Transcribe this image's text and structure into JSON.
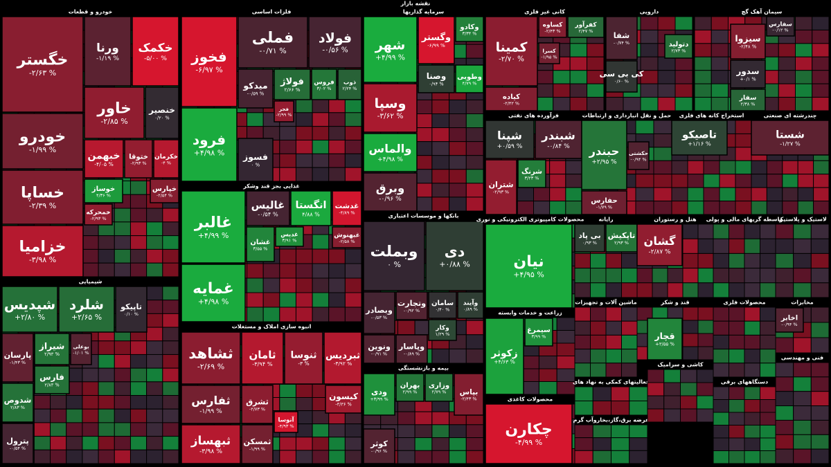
{
  "chart_data": {
    "type": "treemap",
    "title": "نقشه بازار",
    "sectors": [
      {
        "name": "خودرو و قطعات",
        "tiles": [
          {
            "name": "خگستر",
            "value": -2.63,
            "value_label": "-۲/۶۳ %"
          },
          {
            "name": "خودرو",
            "value": -1.99,
            "value_label": "-۱/۹۹ %"
          },
          {
            "name": "خساپا",
            "value": -2.39,
            "value_label": "-۲/۳۹ %"
          },
          {
            "name": "خزامیا",
            "value": -3.98,
            "value_label": "-۳/۹۸ %"
          },
          {
            "name": "ورنا",
            "value": -1.19,
            "value_label": "-۱/۱۹ %"
          },
          {
            "name": "خکمک",
            "value": -5,
            "value_label": "-۵/۰۰ %"
          },
          {
            "name": "خاور",
            "value": -2.85,
            "value_label": "-۲/۸۵ %"
          },
          {
            "name": "خنصیر",
            "value": 0.2,
            "value_label": "۰/۲۰ %"
          },
          {
            "name": "خبهمن",
            "value": -4.05,
            "value_label": "-۴/۰۵ %"
          },
          {
            "name": "ختوقا",
            "value": -2.93,
            "value_label": "-۲/۹۳ %"
          },
          {
            "name": "خکرمان",
            "value": -4,
            "value_label": "-۴ %"
          },
          {
            "name": "خوساز",
            "value": 4.36,
            "value_label": "۴/۳۶ %"
          },
          {
            "name": "خپارس",
            "value": -2.54,
            "value_label": "-۲/۵۴ %"
          },
          {
            "name": "خمحرکه",
            "value": -2.93,
            "value_label": "-۲/۹۳ %"
          }
        ]
      },
      {
        "name": "شیمیایی",
        "tiles": [
          {
            "name": "شپدیس",
            "value": 2.8,
            "value_label": "+۲/۸۰ %"
          },
          {
            "name": "شلرد",
            "value": 2.65,
            "value_label": "+۲/۶۵ %"
          },
          {
            "name": "تاپیکو",
            "value": 0.1,
            "value_label": "۰/۱۰ %"
          },
          {
            "name": "پارسان",
            "value": -1.43,
            "value_label": "-۱/۴۳ %"
          },
          {
            "name": "شیراز",
            "value": 2.93,
            "value_label": "۲/۹۳ %"
          },
          {
            "name": "بوعلی",
            "value": -1.01,
            "value_label": "-۱/۰۱ %"
          },
          {
            "name": "شدوص",
            "value": 2.83,
            "value_label": "۲/۸۳ %"
          },
          {
            "name": "فارس",
            "value": 2.83,
            "value_label": "۲/۸۳ %"
          },
          {
            "name": "پترول",
            "value": -0.54,
            "value_label": "-۰/۵۴ %"
          }
        ]
      },
      {
        "name": "فلزات اساسی",
        "tiles": [
          {
            "name": "فخوز",
            "value": -6.97,
            "value_label": "-۶/۹۷ %"
          },
          {
            "name": "فملی",
            "value": -0.71,
            "value_label": "-۰/۷۱ %"
          },
          {
            "name": "فولاد",
            "value": -0.56,
            "value_label": "-۰/۵۶ %"
          },
          {
            "name": "فرود",
            "value": 4.98,
            "value_label": "+۴/۹۸ %"
          },
          {
            "name": "میدکو",
            "value": -0.59,
            "value_label": "-۰/۵۹ %"
          },
          {
            "name": "فولاژ",
            "value": 2.66,
            "value_label": "۲/۶۶ %"
          },
          {
            "name": "فروس",
            "value": 3.02,
            "value_label": "۳/۰۲ %"
          },
          {
            "name": "ذوب",
            "value": 2.24,
            "value_label": "۲/۲۴ %"
          },
          {
            "name": "فجر",
            "value": -2.99,
            "value_label": "-۲/۹۹ %"
          },
          {
            "name": "فسوز",
            "value": 0,
            "value_label": "۰ %"
          }
        ]
      },
      {
        "name": "غذایی بجز قند وشکر",
        "tiles": [
          {
            "name": "غالبر",
            "value": 4.99,
            "value_label": "+۴/۹۹ %"
          },
          {
            "name": "غمایه",
            "value": 4.98,
            "value_label": "+۴/۹۸ %"
          },
          {
            "name": "غالیس",
            "value": -0.54,
            "value_label": "-۰/۵۴ %"
          },
          {
            "name": "انگستا",
            "value": 4.88,
            "value_label": "۴/۸۸ %"
          },
          {
            "name": "غدشت",
            "value": -4.89,
            "value_label": "-۴/۸۹ %"
          },
          {
            "name": "غشان",
            "value": 3.55,
            "value_label": "۳/۵۵ %"
          },
          {
            "name": "غدیس",
            "value": 3.91,
            "value_label": "۳/۹۱ %"
          },
          {
            "name": "غبهنوش",
            "value": -2.58,
            "value_label": "-۲/۵۸ %"
          }
        ]
      },
      {
        "name": "انبوه سازی املاک و مستغلات",
        "tiles": [
          {
            "name": "ثشاهد",
            "value": -2.69,
            "value_label": "-۲/۶۹ %"
          },
          {
            "name": "ثامان",
            "value": -3.94,
            "value_label": "-۳/۹۴ %"
          },
          {
            "name": "ثنوسا",
            "value": -3,
            "value_label": "-۳ %"
          },
          {
            "name": "ثبردیس",
            "value": -3.92,
            "value_label": "-۳/۹۲ %"
          },
          {
            "name": "ثفارس",
            "value": -1.99,
            "value_label": "-۱/۹۹ %"
          },
          {
            "name": "ثبهساز",
            "value": -3.98,
            "value_label": "-۳/۹۸ %"
          },
          {
            "name": "ثشرق",
            "value": -2.73,
            "value_label": "-۲/۷۳ %"
          },
          {
            "name": "ثمسکن",
            "value": -1.99,
            "value_label": "-۱/۹۹ %"
          },
          {
            "name": "کیسون",
            "value": -3.36,
            "value_label": "-۳/۳۶ %"
          },
          {
            "name": "آتوسا",
            "value": -4.93,
            "value_label": "-۴/۹۳ %"
          }
        ]
      },
      {
        "name": "سرمایه گذاریها",
        "tiles": [
          {
            "name": "شهر",
            "value": 4.99,
            "value_label": "+۴/۹۹ %"
          },
          {
            "name": "وسپا",
            "value": -3.62,
            "value_label": "-۳/۶۲ %"
          },
          {
            "name": "والماس",
            "value": 4.98,
            "value_label": "+۴/۹۸ %"
          },
          {
            "name": "وبرق",
            "value": -0.96,
            "value_label": "-۰/۹۶ %"
          },
          {
            "name": "وگستر",
            "value": -6.99,
            "value_label": "-۶/۹۹ %"
          },
          {
            "name": "وکادو",
            "value": 3.34,
            "value_label": "۳/۳۴ %"
          },
          {
            "name": "وطوبی",
            "value": 4.79,
            "value_label": "۴/۷۹ %"
          },
          {
            "name": "وصنا",
            "value": 0.94,
            "value_label": "۰/۹۴ %"
          }
        ]
      },
      {
        "name": "بانکها و موسسات اعتباری",
        "tiles": [
          {
            "name": "وبملت",
            "value": 0,
            "value_label": "۰ %"
          },
          {
            "name": "دی",
            "value": 0.88,
            "value_label": "+۰/۸۸ %"
          },
          {
            "name": "وبصادر",
            "value": -0.53,
            "value_label": "-۰/۵۳ %"
          },
          {
            "name": "وتجارت",
            "value": -0.92,
            "value_label": "-۰/۹۲ %"
          },
          {
            "name": "سامان",
            "value": 0.4,
            "value_label": "۰/۴۰ %"
          },
          {
            "name": "وآیند",
            "value": 0.89,
            "value_label": "۰/۸۹ %"
          },
          {
            "name": "ونوین",
            "value": -0.91,
            "value_label": "-۰/۹۱ %"
          },
          {
            "name": "وپاسار",
            "value": -0.89,
            "value_label": "-۰/۸۹ %"
          },
          {
            "name": "وکار",
            "value": 1.29,
            "value_label": "۱/۲۹ %"
          }
        ]
      },
      {
        "name": "بیمه و بازنشستگی",
        "tiles": [
          {
            "name": "ودی",
            "value": 3.99,
            "value_label": "+۳/۹۹ %"
          },
          {
            "name": "کوثر",
            "value": -0.96,
            "value_label": "-۰/۹۶ %"
          },
          {
            "name": "بهران",
            "value": 2.99,
            "value_label": "۲/۹۹ %"
          },
          {
            "name": "وزاری",
            "value": 2.79,
            "value_label": "۲/۷۹ %"
          },
          {
            "name": "بپاس",
            "value": -2.43,
            "value_label": "-۲/۴۳ %"
          }
        ]
      },
      {
        "name": "کانی غیر فلزی",
        "tiles": [
          {
            "name": "کمینا",
            "value": -2.7,
            "value_label": "-۲/۷۰ %"
          },
          {
            "name": "کساوه",
            "value": -2.43,
            "value_label": "-۲/۴۳ %"
          },
          {
            "name": "کفرآور",
            "value": 2.47,
            "value_label": "۲/۴۷ %"
          },
          {
            "name": "کسرا",
            "value": -1.95,
            "value_label": "-۱/۹۵ %"
          },
          {
            "name": "کیاده",
            "value": -2.42,
            "value_label": "-۲/۴۲ %"
          }
        ]
      },
      {
        "name": "دارویی",
        "tiles": [
          {
            "name": "شفا",
            "value": -0.74,
            "value_label": "-۰/۷۴ %"
          },
          {
            "name": "کی بی سی",
            "value": 0.6,
            "value_label": "۰/۶۰ %"
          },
          {
            "name": "دتولید",
            "value": 2.73,
            "value_label": "۲/۷۳ %"
          }
        ]
      },
      {
        "name": "سیمان آهک گچ",
        "tiles": [
          {
            "name": "سیزوا",
            "value": -2.48,
            "value_label": "-۲/۴۸ %"
          },
          {
            "name": "سدور",
            "value": 0.1,
            "value_label": "+۰/۱ %"
          },
          {
            "name": "سفار",
            "value": 2.38,
            "value_label": "۲/۳۸ %"
          },
          {
            "name": "سفارس",
            "value": -0.12,
            "value_label": "-۰/۱۲ %"
          }
        ]
      },
      {
        "name": "فرآورده های نفتی",
        "tiles": [
          {
            "name": "شپنا",
            "value": 0.59,
            "value_label": "+۰/۵۹ %"
          },
          {
            "name": "شبندر",
            "value": -0.84,
            "value_label": "-۰/۸۴ %"
          },
          {
            "name": "شتران",
            "value": -2.93,
            "value_label": "-۲/۹۳ %"
          },
          {
            "name": "شرنگ",
            "value": 3.23,
            "value_label": "۳/۲۳ %"
          }
        ]
      },
      {
        "name": "حمل و نقل انبارداری و ارتباطات",
        "tiles": [
          {
            "name": "حبندر",
            "value": 2.95,
            "value_label": "+۲/۹۵ %"
          },
          {
            "name": "حکشتی",
            "value": -0.94,
            "value_label": "-۰/۹۴ %"
          },
          {
            "name": "حفارس",
            "value": -1.79,
            "value_label": "-۱/۷۹ %"
          }
        ]
      },
      {
        "name": "استخراج کانه های فلزی",
        "tiles": [
          {
            "name": "تاصیکو",
            "value": 1.16,
            "value_label": "+۱/۱۶ %"
          }
        ]
      },
      {
        "name": "چندرشته ای صنعتی",
        "tiles": [
          {
            "name": "شستا",
            "value": -1.27,
            "value_label": "-۱/۲۷ %"
          }
        ]
      },
      {
        "name": "محصولات کامپیوتری الکترونیکی و نوری",
        "tiles": [
          {
            "name": "نیان",
            "value": 4.95,
            "value_label": "+۴/۹۵ %"
          }
        ]
      },
      {
        "name": "رایانه",
        "tiles": [
          {
            "name": "تاپکیش",
            "value": 2.93,
            "value_label": "۲/۹۳ %"
          },
          {
            "name": "بی پاد",
            "value": 0.93,
            "value_label": "۰/۹۳ %"
          }
        ]
      },
      {
        "name": "هتل و رستوران",
        "tiles": [
          {
            "name": "گشان",
            "value": -2.87,
            "value_label": "-۲/۸۷ %"
          }
        ]
      },
      {
        "name": "واسطه گریهای مالی و پولی",
        "tiles": []
      },
      {
        "name": "لاستیک و پلاستیک",
        "tiles": []
      },
      {
        "name": "زراعت و خدمات وابسته",
        "tiles": [
          {
            "name": "زکوثر",
            "value": 4.63,
            "value_label": "+۴/۶۳ %"
          },
          {
            "name": "سیمرغ",
            "value": 3.99,
            "value_label": "۳/۹۹ %"
          }
        ]
      },
      {
        "name": "ماشین آلات و تجهیزات",
        "tiles": []
      },
      {
        "name": "قند و شکر",
        "tiles": [
          {
            "name": "قچار",
            "value": 3.55,
            "value_label": "+۳/۵۵ %"
          }
        ]
      },
      {
        "name": "محصولات فلزی",
        "tiles": []
      },
      {
        "name": "مخابرات",
        "tiles": [
          {
            "name": "اخابر",
            "value": -0.94,
            "value_label": "-۰/۹۴ %"
          }
        ]
      },
      {
        "name": "محصولات کاغذی",
        "tiles": [
          {
            "name": "چکارن",
            "value": -4.99,
            "value_label": "-۴/۹۹ %"
          }
        ]
      },
      {
        "name": "فعالیتهای کمکی به نهاد های",
        "tiles": []
      },
      {
        "name": "عرضه برق،گاز،بخاروآب گرم",
        "tiles": []
      },
      {
        "name": "کاشی و سرامیک",
        "tiles": []
      },
      {
        "name": "دستگاههای برقی",
        "tiles": []
      },
      {
        "name": "فنی و مهندسی",
        "tiles": []
      }
    ]
  }
}
